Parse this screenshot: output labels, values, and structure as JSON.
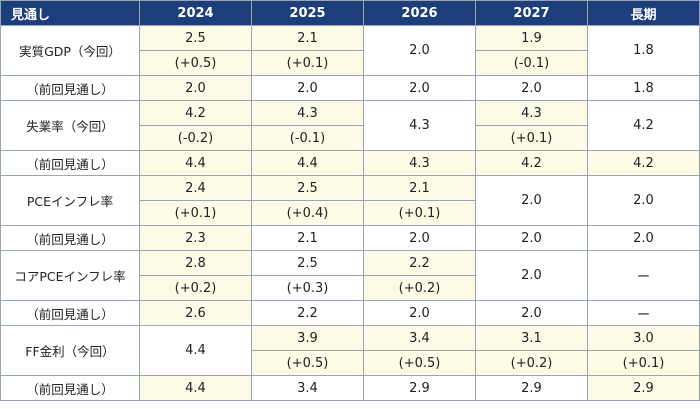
{
  "colors": {
    "header_bg": "#1c3f7c",
    "highlight_bg": "#fdfae6",
    "border": "#9aa4b8"
  },
  "header": [
    "見通し",
    "2024",
    "2025",
    "2026",
    "2027",
    "長期"
  ],
  "rows": {
    "gdp_label": "実質GDP（今回）",
    "gdp_2024": "2.5",
    "gdp_2024_chg": "(+0.5)",
    "gdp_2025": "2.1",
    "gdp_2025_chg": "(+0.1)",
    "gdp_2026": "2.0",
    "gdp_2027": "1.9",
    "gdp_2027_chg": "(-0.1)",
    "gdp_long": "1.8",
    "gdp_prev_label": "（前回見通し）",
    "gdp_prev": [
      "2.0",
      "2.0",
      "2.0",
      "2.0",
      "1.8"
    ],
    "unemp_label": "失業率（今回）",
    "unemp_2024": "4.2",
    "unemp_2024_chg": "(-0.2)",
    "unemp_2025": "4.3",
    "unemp_2025_chg": "(-0.1)",
    "unemp_2026": "4.3",
    "unemp_2027": "4.3",
    "unemp_2027_chg": "(+0.1)",
    "unemp_long": "4.2",
    "unemp_prev_label": "（前回見通し）",
    "unemp_prev": [
      "4.4",
      "4.4",
      "4.3",
      "4.2",
      "4.2"
    ],
    "pce_label": "PCEインフレ率",
    "pce_2024": "2.4",
    "pce_2024_chg": "(+0.1)",
    "pce_2025": "2.5",
    "pce_2025_chg": "(+0.4)",
    "pce_2026": "2.1",
    "pce_2026_chg": "(+0.1)",
    "pce_2027": "2.0",
    "pce_long": "2.0",
    "pce_prev_label": "（前回見通し）",
    "pce_prev": [
      "2.3",
      "2.1",
      "2.0",
      "2.0",
      "2.0"
    ],
    "core_label": "コアPCEインフレ率",
    "core_2024": "2.8",
    "core_2024_chg": "(+0.2)",
    "core_2025": "2.5",
    "core_2025_chg": "(+0.3)",
    "core_2026": "2.2",
    "core_2026_chg": "(+0.2)",
    "core_2027": "2.0",
    "core_long": "ー",
    "core_prev_label": "（前回見通し）",
    "core_prev": [
      "2.6",
      "2.2",
      "2.0",
      "2.0",
      "ー"
    ],
    "ff_label": "FF金利（今回）",
    "ff_2024": "4.4",
    "ff_2025": "3.9",
    "ff_2025_chg": "(+0.5)",
    "ff_2026": "3.4",
    "ff_2026_chg": "(+0.5)",
    "ff_2027": "3.1",
    "ff_2027_chg": "(+0.2)",
    "ff_long": "3.0",
    "ff_long_chg": "(+0.1)",
    "ff_prev_label": "（前回見通し）",
    "ff_prev": [
      "4.4",
      "3.4",
      "2.9",
      "2.9",
      "2.9"
    ]
  }
}
